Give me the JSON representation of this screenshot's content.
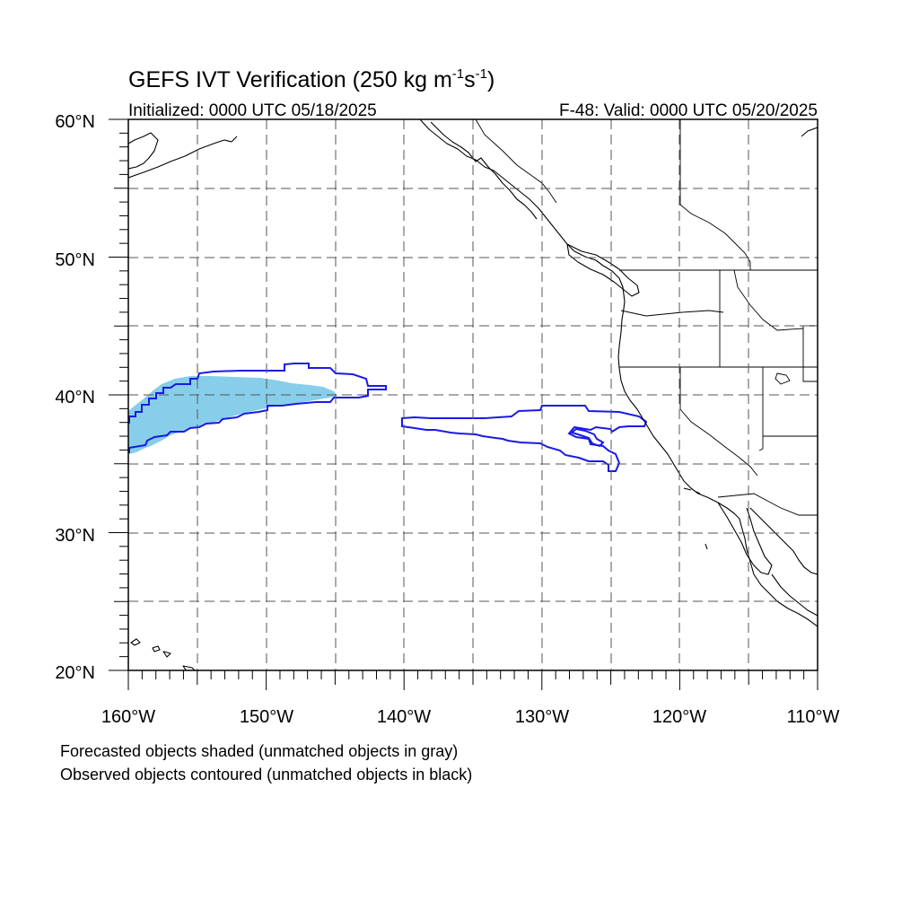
{
  "title": {
    "main": "GEFS IVT Verification (250 kg m",
    "sup1": "-1",
    "mid": "s",
    "sup2": "-1",
    "close": ")"
  },
  "subtitle_left": "Initialized: 0000 UTC 05/18/2025",
  "subtitle_right": "F-48: Valid: 0000 UTC 05/20/2025",
  "map": {
    "lon_range": [
      -160,
      -110
    ],
    "lat_range": [
      20,
      60
    ],
    "lon_labels": [
      "160°W",
      "150°W",
      "140°W",
      "130°W",
      "120°W",
      "110°W"
    ],
    "lat_labels": [
      "60°N",
      "50°N",
      "40°N",
      "30°N",
      "20°N"
    ],
    "grid": "dashed every 5 degrees",
    "forecast_color": "#87ceeb",
    "observed_color": "#1a1ae6"
  },
  "footnotes": [
    "Forecasted objects shaded (unmatched objects in gray)",
    "Observed objects contoured (unmatched objects in black)"
  ]
}
